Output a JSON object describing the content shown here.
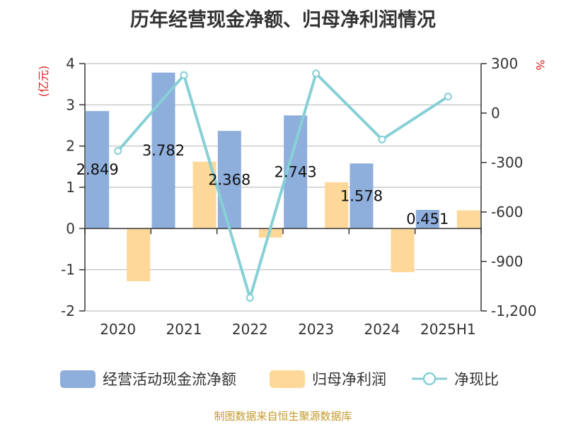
{
  "chart_data": {
    "type": "bar",
    "title": "历年经营现金净额、归母净利润情况",
    "categories": [
      "2020",
      "2021",
      "2022",
      "2023",
      "2024",
      "2025H1"
    ],
    "y_left": {
      "unit": "(亿元)",
      "min": -2,
      "max": 4,
      "ticks": [
        4,
        3,
        2,
        1,
        0,
        -1,
        -2
      ]
    },
    "y_right": {
      "unit": "%",
      "min": -1200,
      "max": 300,
      "ticks": [
        300,
        0,
        -300,
        -600,
        -900,
        -1200
      ],
      "tick_labels": [
        "300",
        "0",
        "-300",
        "-600",
        "-900",
        "-1,200"
      ]
    },
    "series": [
      {
        "name": "经营活动现金流净额",
        "kind": "bar",
        "axis": "left",
        "color": "#8eaedc",
        "values": [
          2.849,
          3.782,
          2.368,
          2.743,
          1.578,
          0.451
        ],
        "labels": [
          "2.849",
          "3.782",
          "2.368",
          "2.743",
          "1.578",
          "0.451"
        ]
      },
      {
        "name": "归母净利润",
        "kind": "bar",
        "axis": "left",
        "color": "#fdd898",
        "values": [
          -1.28,
          1.62,
          -0.22,
          1.12,
          -1.06,
          0.44
        ]
      },
      {
        "name": "净现比",
        "kind": "line",
        "axis": "right",
        "color": "#86d0d6",
        "values": [
          -230,
          230,
          -1120,
          240,
          -160,
          100
        ]
      }
    ],
    "grid": true,
    "legend_position": "bottom"
  },
  "footer": {
    "source": "制图数据来自恒生聚源数据库"
  }
}
